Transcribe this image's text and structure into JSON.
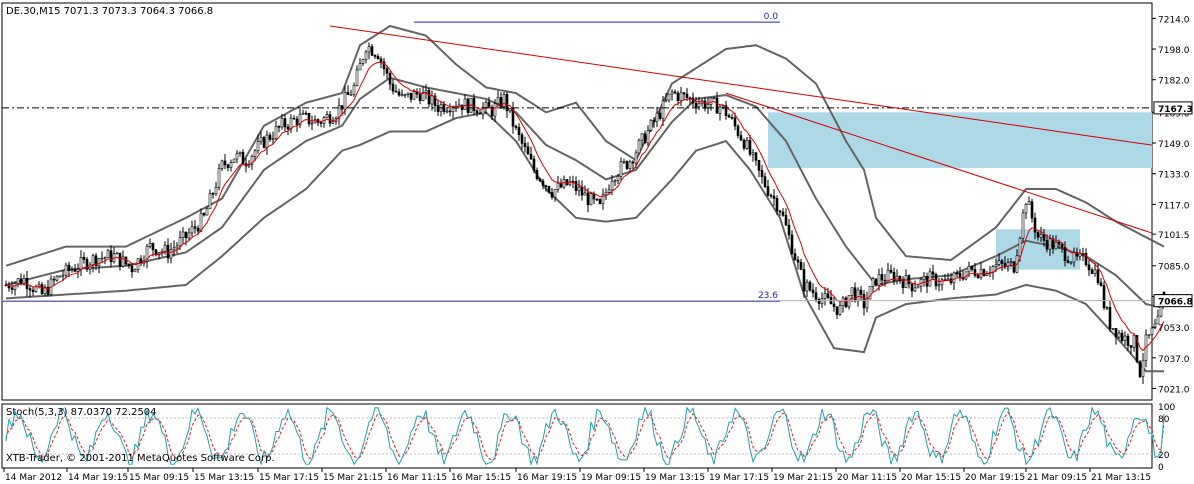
{
  "window": {
    "main_header": "DE.30,M15  7071.3 7073.3 7064.3 7066.8",
    "stoch_header": "Stoch(5,3,3) 87.0370 72.2504",
    "copyright": "XTB-Trader, © 2001-2011 MetaQuotes Software Corp."
  },
  "colors": {
    "background": "#ffffff",
    "candles": "#000000",
    "bollinger": "#646464",
    "ma": "#e00000",
    "trendline": "#d00000",
    "fib": "#2020c0",
    "zone": "#add8e6",
    "stoch_main": "#20a0b0",
    "stoch_signal": "#e02020"
  },
  "chart_data": {
    "type": "candlestick",
    "symbol": "DE.30",
    "timeframe": "M15",
    "ohlc_last": {
      "open": 7071.3,
      "high": 7073.3,
      "low": 7064.3,
      "close": 7066.8
    },
    "ylim": [
      7015,
      7222
    ],
    "y_ticks": [
      "7214.0",
      "7198.0",
      "7182.0",
      "7165.0",
      "7149.0",
      "7133.0",
      "7117.0",
      "7101.5",
      "7085.0",
      "7069.0",
      "7053.0",
      "7037.0",
      "7021.0"
    ],
    "x_ticks": [
      "14 Mar 2012",
      "14 Mar 19:15",
      "15 Mar 09:15",
      "15 Mar 13:15",
      "15 Mar 17:15",
      "15 Mar 21:15",
      "16 Mar 11:15",
      "16 Mar 15:15",
      "16 Mar 19:15",
      "19 Mar 09:15",
      "19 Mar 13:15",
      "19 Mar 17:15",
      "19 Mar 21:15",
      "20 Mar 11:15",
      "20 Mar 15:15",
      "20 Mar 19:15",
      "21 Mar 09:15",
      "21 Mar 13:15"
    ],
    "current_price": "7066.8",
    "hline_price": "7167.3",
    "fib_levels": [
      {
        "label": "0.0",
        "price": 7212
      },
      {
        "label": "23.6",
        "price": 7066.5
      }
    ],
    "close_path": [
      [
        0,
        7075
      ],
      [
        6,
        7078
      ],
      [
        12,
        7070
      ],
      [
        18,
        7080
      ],
      [
        24,
        7085
      ],
      [
        30,
        7089
      ],
      [
        36,
        7090
      ],
      [
        42,
        7084
      ],
      [
        48,
        7095
      ],
      [
        54,
        7092
      ],
      [
        60,
        7100
      ],
      [
        66,
        7110
      ],
      [
        72,
        7137
      ],
      [
        76,
        7142
      ],
      [
        80,
        7140
      ],
      [
        86,
        7150
      ],
      [
        92,
        7158
      ],
      [
        98,
        7162
      ],
      [
        104,
        7160
      ],
      [
        110,
        7165
      ],
      [
        116,
        7178
      ],
      [
        120,
        7200
      ],
      [
        124,
        7196
      ],
      [
        128,
        7180
      ],
      [
        132,
        7172
      ],
      [
        138,
        7175
      ],
      [
        144,
        7168
      ],
      [
        150,
        7170
      ],
      [
        156,
        7168
      ],
      [
        162,
        7166
      ],
      [
        166,
        7172
      ],
      [
        170,
        7155
      ],
      [
        176,
        7135
      ],
      [
        182,
        7124
      ],
      [
        188,
        7128
      ],
      [
        194,
        7120
      ],
      [
        198,
        7115
      ],
      [
        202,
        7132
      ],
      [
        208,
        7140
      ],
      [
        212,
        7150
      ],
      [
        218,
        7165
      ],
      [
        222,
        7175
      ],
      [
        228,
        7172
      ],
      [
        232,
        7170
      ],
      [
        238,
        7168
      ],
      [
        240,
        7165
      ],
      [
        246,
        7150
      ],
      [
        252,
        7130
      ],
      [
        258,
        7115
      ],
      [
        262,
        7095
      ],
      [
        266,
        7075
      ],
      [
        272,
        7068
      ],
      [
        278,
        7062
      ],
      [
        282,
        7072
      ],
      [
        286,
        7065
      ],
      [
        290,
        7078
      ],
      [
        296,
        7080
      ],
      [
        302,
        7075
      ],
      [
        308,
        7078
      ],
      [
        314,
        7076
      ],
      [
        320,
        7082
      ],
      [
        326,
        7083
      ],
      [
        330,
        7085
      ],
      [
        336,
        7085
      ],
      [
        340,
        7120
      ],
      [
        344,
        7100
      ],
      [
        350,
        7095
      ],
      [
        356,
        7088
      ],
      [
        360,
        7088
      ],
      [
        364,
        7080
      ],
      [
        366,
        7065
      ],
      [
        368,
        7055
      ],
      [
        372,
        7048
      ],
      [
        376,
        7045
      ],
      [
        378,
        7030
      ],
      [
        380,
        7045
      ],
      [
        384,
        7055
      ],
      [
        386,
        7066.8
      ]
    ],
    "bollinger_upper": [
      [
        0,
        7085
      ],
      [
        20,
        7095
      ],
      [
        40,
        7095
      ],
      [
        60,
        7110
      ],
      [
        72,
        7120
      ],
      [
        86,
        7158
      ],
      [
        100,
        7170
      ],
      [
        112,
        7175
      ],
      [
        118,
        7200
      ],
      [
        128,
        7210
      ],
      [
        140,
        7205
      ],
      [
        150,
        7190
      ],
      [
        160,
        7178
      ],
      [
        170,
        7175
      ],
      [
        180,
        7165
      ],
      [
        190,
        7170
      ],
      [
        200,
        7150
      ],
      [
        210,
        7140
      ],
      [
        222,
        7180
      ],
      [
        230,
        7188
      ],
      [
        240,
        7198
      ],
      [
        250,
        7200
      ],
      [
        260,
        7193
      ],
      [
        270,
        7180
      ],
      [
        280,
        7150
      ],
      [
        286,
        7135
      ],
      [
        290,
        7110
      ],
      [
        300,
        7090
      ],
      [
        315,
        7088
      ],
      [
        330,
        7105
      ],
      [
        340,
        7125
      ],
      [
        350,
        7125
      ],
      [
        360,
        7118
      ],
      [
        370,
        7108
      ],
      [
        386,
        7095
      ]
    ],
    "bollinger_middle": [
      [
        0,
        7075
      ],
      [
        20,
        7083
      ],
      [
        40,
        7085
      ],
      [
        60,
        7092
      ],
      [
        72,
        7105
      ],
      [
        86,
        7135
      ],
      [
        100,
        7150
      ],
      [
        112,
        7158
      ],
      [
        118,
        7172
      ],
      [
        128,
        7183
      ],
      [
        140,
        7178
      ],
      [
        150,
        7175
      ],
      [
        160,
        7172
      ],
      [
        170,
        7165
      ],
      [
        180,
        7148
      ],
      [
        190,
        7140
      ],
      [
        200,
        7130
      ],
      [
        210,
        7135
      ],
      [
        222,
        7160
      ],
      [
        230,
        7172
      ],
      [
        240,
        7174
      ],
      [
        250,
        7168
      ],
      [
        260,
        7150
      ],
      [
        270,
        7120
      ],
      [
        280,
        7095
      ],
      [
        290,
        7075
      ],
      [
        300,
        7078
      ],
      [
        315,
        7080
      ],
      [
        330,
        7090
      ],
      [
        340,
        7098
      ],
      [
        350,
        7095
      ],
      [
        360,
        7090
      ],
      [
        370,
        7080
      ],
      [
        380,
        7065
      ],
      [
        386,
        7063
      ]
    ],
    "bollinger_lower": [
      [
        0,
        7068
      ],
      [
        20,
        7070
      ],
      [
        40,
        7072
      ],
      [
        60,
        7075
      ],
      [
        72,
        7090
      ],
      [
        86,
        7110
      ],
      [
        100,
        7125
      ],
      [
        112,
        7145
      ],
      [
        118,
        7148
      ],
      [
        128,
        7155
      ],
      [
        140,
        7155
      ],
      [
        150,
        7162
      ],
      [
        160,
        7165
      ],
      [
        170,
        7150
      ],
      [
        180,
        7125
      ],
      [
        190,
        7110
      ],
      [
        200,
        7108
      ],
      [
        210,
        7110
      ],
      [
        222,
        7130
      ],
      [
        230,
        7145
      ],
      [
        240,
        7150
      ],
      [
        248,
        7135
      ],
      [
        258,
        7110
      ],
      [
        266,
        7070
      ],
      [
        276,
        7042
      ],
      [
        286,
        7040
      ],
      [
        290,
        7058
      ],
      [
        300,
        7065
      ],
      [
        315,
        7068
      ],
      [
        330,
        7070
      ],
      [
        340,
        7075
      ],
      [
        350,
        7072
      ],
      [
        360,
        7065
      ],
      [
        370,
        7048
      ],
      [
        380,
        7030
      ],
      [
        386,
        7030
      ]
    ],
    "trendlines": [
      {
        "from": [
          108,
          7210
        ],
        "to": [
          386,
          7147
        ]
      },
      {
        "from": [
          240,
          7175
        ],
        "to": [
          386,
          7100
        ]
      }
    ],
    "zones": [
      {
        "x_from": 254,
        "x_to": 386,
        "y_from": 7136,
        "y_to": 7165
      },
      {
        "x_from": 330,
        "x_to": 358,
        "y_from": 7083,
        "y_to": 7104
      }
    ],
    "stoch_ylim": [
      0,
      100
    ],
    "stoch_ticks": [
      "100",
      "80",
      "20",
      "0"
    ],
    "stoch_levels": [
      80,
      20
    ],
    "stoch_last": {
      "main": 87.037,
      "signal": 72.2504
    }
  }
}
